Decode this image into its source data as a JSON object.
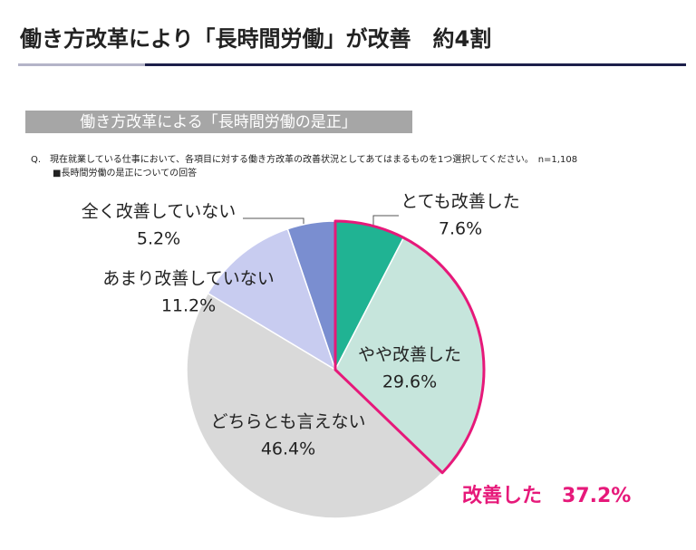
{
  "chart_data": {
    "type": "pie",
    "title": "働き方改革により「長時間労働」が改善　約4割",
    "subtitle": "働き方改革による「長時間労働の是正」",
    "question": "Q.　現在就業している仕事において、各項目に対する働き方改革の改善状況としてあてはまるものを1つ選択してください。　n=1,108",
    "note": "■長時間労働の是正についての回答",
    "annotation": "改善した　37.2%",
    "categories": [
      "とても改善した",
      "やや改善した",
      "どちらとも言えない",
      "あまり改善していない",
      "全く改善していない"
    ],
    "values": [
      7.6,
      29.6,
      46.4,
      11.2,
      5.2
    ],
    "value_labels": [
      "7.6%",
      "29.6%",
      "46.4%",
      "11.2%",
      "5.2%"
    ],
    "colors": [
      "#20b393",
      "#c6e5dc",
      "#d9d9d9",
      "#c8ccf0",
      "#7a8ed0"
    ],
    "highlight_color": "#e6197a"
  }
}
